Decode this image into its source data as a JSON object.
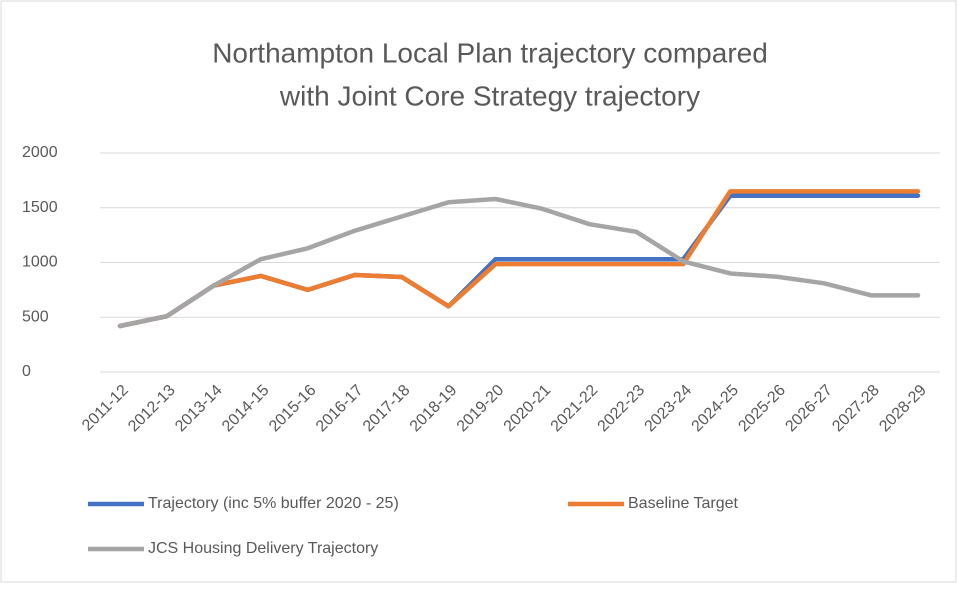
{
  "chart_data": {
    "type": "line",
    "title": [
      "Northampton Local Plan trajectory compared",
      "with Joint Core Strategy trajectory"
    ],
    "categories": [
      "2011-12",
      "2012-13",
      "2013-14",
      "2014-15",
      "2015-16",
      "2016-17",
      "2017-18",
      "2018-19",
      "2019-20",
      "2020-21",
      "2021-22",
      "2022-23",
      "2023-24",
      "2024-25",
      "2025-26",
      "2026-27",
      "2027-28",
      "2028-29"
    ],
    "series": [
      {
        "name": "Trajectory (inc 5% buffer 2020 - 25)",
        "color": "#4472c4",
        "values": [
          420,
          510,
          790,
          877,
          750,
          886,
          868,
          600,
          1030,
          1030,
          1030,
          1030,
          1030,
          1610,
          1610,
          1610,
          1610,
          1610
        ]
      },
      {
        "name": "Baseline Target",
        "color": "#ed7d31",
        "values": [
          420,
          510,
          790,
          877,
          750,
          886,
          868,
          600,
          985,
          985,
          985,
          985,
          985,
          1650,
          1650,
          1650,
          1650,
          1650
        ]
      },
      {
        "name": "JCS Housing Delivery Trajectory",
        "color": "#a5a5a5",
        "values": [
          420,
          510,
          790,
          1030,
          1130,
          1290,
          1420,
          1550,
          1580,
          1490,
          1350,
          1280,
          1010,
          900,
          870,
          810,
          700,
          700
        ]
      }
    ],
    "ylim": [
      0,
      2000
    ],
    "yticks": [
      0,
      500,
      1000,
      1500,
      2000
    ],
    "grid": true
  }
}
